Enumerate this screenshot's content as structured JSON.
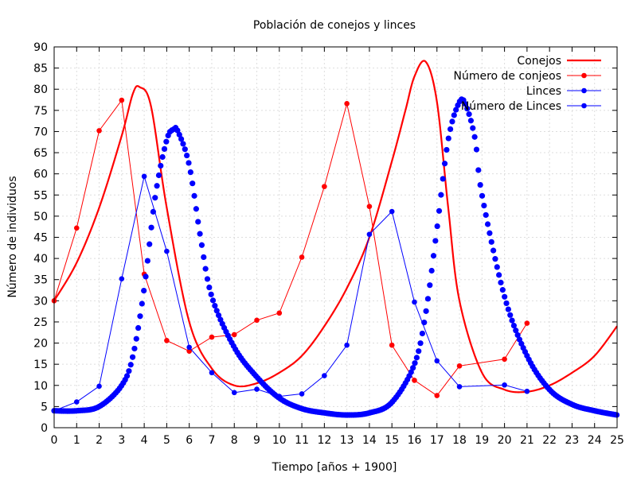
{
  "chart_data": {
    "type": "line",
    "title": "Población de conejos y linces",
    "xlabel": "Tiempo [años + 1900]",
    "ylabel": "Número de individuos",
    "xlim": [
      0,
      25
    ],
    "ylim": [
      0,
      90
    ],
    "xticks": [
      "0",
      "1",
      "2",
      "3",
      "4",
      "5",
      "6",
      "7",
      "8",
      "9",
      "10",
      "11",
      "12",
      "13",
      "14",
      "15",
      "16",
      "17",
      "18",
      "19",
      "20",
      "21",
      "22",
      "23",
      "24",
      "25"
    ],
    "yticks": [
      "0",
      "5",
      "10",
      "15",
      "20",
      "25",
      "30",
      "35",
      "40",
      "45",
      "50",
      "55",
      "60",
      "65",
      "70",
      "75",
      "80",
      "85",
      "90"
    ],
    "grid": true,
    "legend_position": "top-right",
    "series": [
      {
        "name": "Conejos",
        "color": "#ff0000",
        "style": "line",
        "x": [
          0,
          1,
          2,
          3,
          3.5,
          3.8,
          4.3,
          5,
          6,
          7,
          8,
          9,
          10,
          11,
          12,
          13,
          14,
          15,
          15.6,
          16,
          16.5,
          17,
          17.5,
          18,
          19,
          20,
          21,
          22,
          23,
          24,
          25
        ],
        "y": [
          30,
          39,
          52,
          69,
          79,
          80.5,
          76,
          52,
          25,
          14,
          10,
          10.5,
          13,
          17,
          24,
          33,
          45,
          63,
          75,
          83,
          86.5,
          77,
          52,
          30,
          13,
          9,
          8.5,
          10,
          13,
          17,
          24
        ]
      },
      {
        "name": "Número de conjeos",
        "color": "#ff0000",
        "style": "linespoints",
        "x": [
          0,
          1,
          2,
          3,
          4,
          5,
          6,
          7,
          8,
          9,
          10,
          11,
          12,
          13,
          14,
          15,
          16,
          17,
          18,
          20,
          21
        ],
        "y": [
          30,
          47.2,
          70.2,
          77.4,
          36.3,
          20.6,
          18.1,
          21.4,
          22.0,
          25.4,
          27.1,
          40.3,
          57.0,
          76.6,
          52.3,
          19.5,
          11.2,
          7.6,
          14.6,
          16.2,
          24.7
        ]
      },
      {
        "name": "Linces",
        "color": "#0000ff",
        "style": "points-dense",
        "x": [
          0,
          1,
          2,
          3,
          3.5,
          4,
          4.5,
          5,
          5.3,
          5.5,
          6,
          6.5,
          7,
          8,
          9,
          10,
          11,
          12,
          13,
          14,
          15,
          16,
          16.5,
          17,
          17.5,
          18,
          18.3,
          18.7,
          19,
          20,
          21,
          22,
          23,
          24,
          25
        ],
        "y": [
          4,
          4,
          5,
          10,
          17,
          33,
          55,
          68,
          70.5,
          70,
          62,
          45,
          31,
          19,
          12,
          7,
          4.5,
          3.5,
          3,
          3.5,
          6,
          15,
          27,
          47,
          68,
          77,
          76,
          68,
          55,
          31,
          17,
          9,
          5.5,
          4,
          3
        ]
      },
      {
        "name": "Número de Linces",
        "color": "#0000ff",
        "style": "linespoints",
        "x": [
          0,
          1,
          2,
          3,
          4,
          5,
          6,
          7,
          8,
          9,
          10,
          11,
          12,
          13,
          14,
          15,
          16,
          17,
          18,
          20,
          21
        ],
        "y": [
          4.0,
          6.1,
          9.8,
          35.2,
          59.4,
          41.7,
          19.0,
          13.0,
          8.3,
          9.1,
          7.4,
          8.0,
          12.3,
          19.5,
          45.7,
          51.1,
          29.7,
          15.8,
          9.7,
          10.1,
          8.6
        ]
      }
    ]
  }
}
